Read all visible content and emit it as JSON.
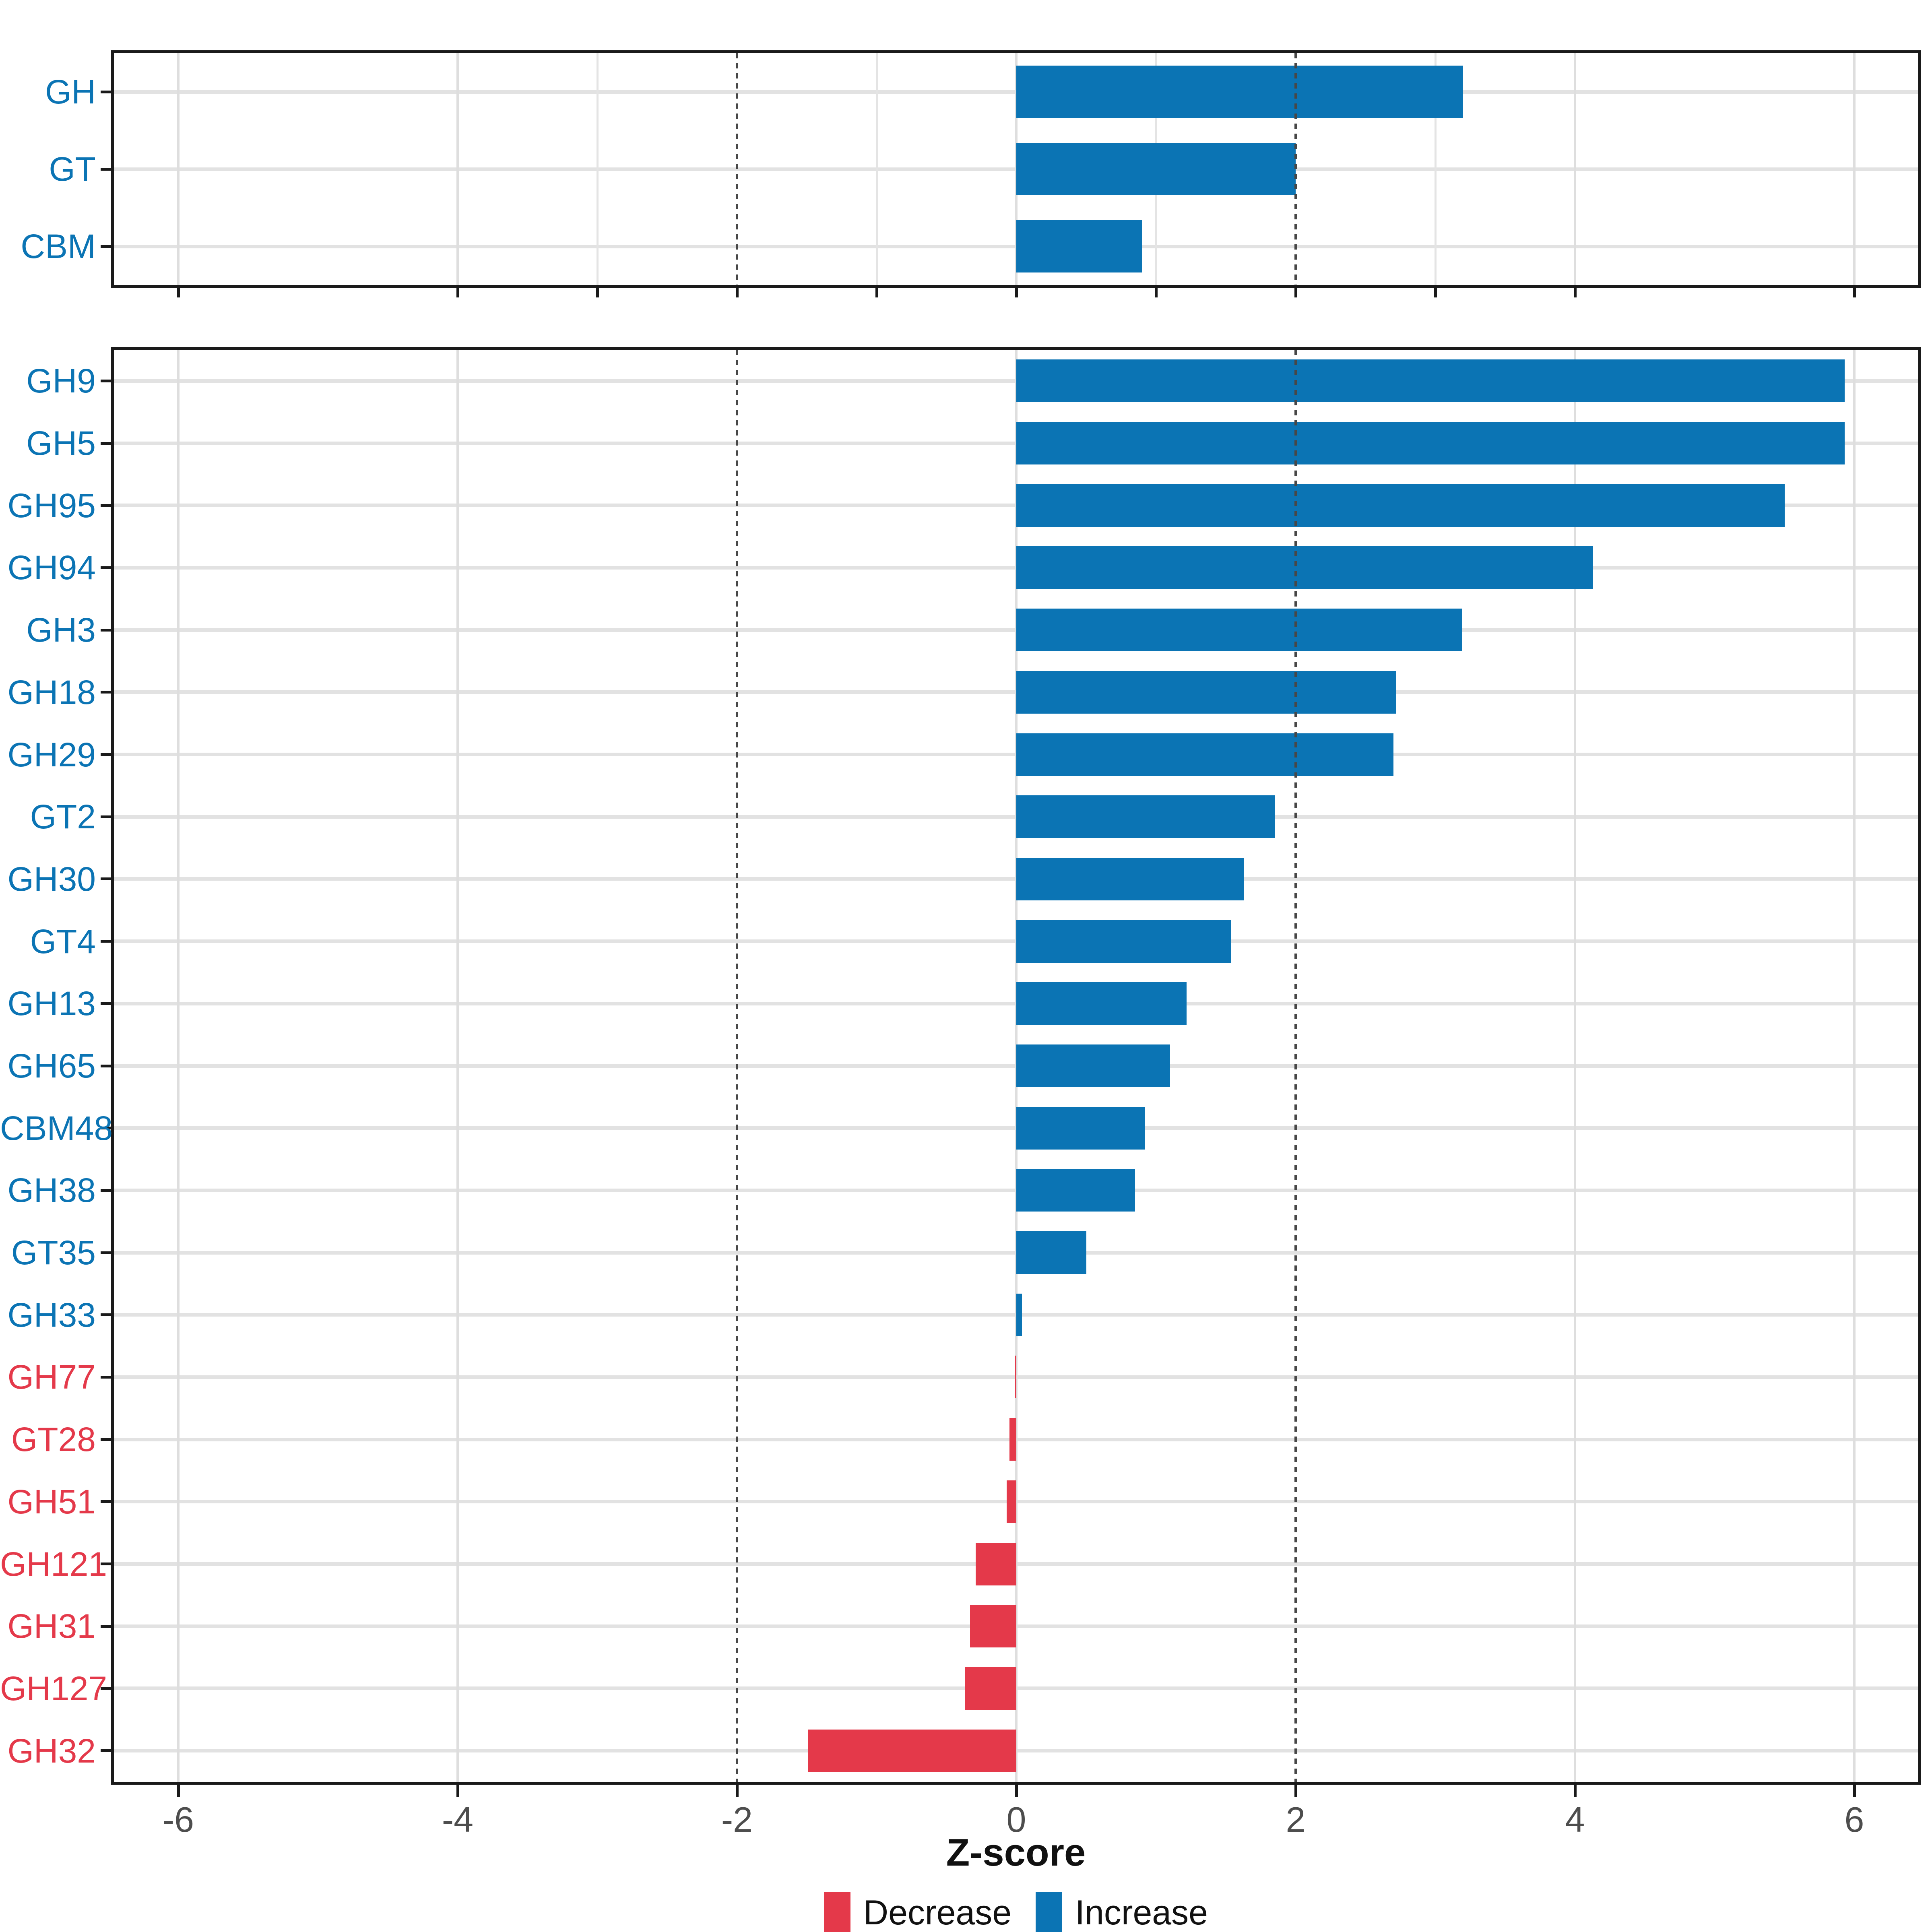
{
  "colors": {
    "increase": "#0B74B4",
    "decrease": "#E4394A",
    "dashed_line": "#474747",
    "grid": "#E2E2E2",
    "axis": "#1A1A1A",
    "tick_label": "#4D4D4D",
    "background": "#FFFFFF"
  },
  "x_axis": {
    "title": "Z-score",
    "tick_labels": [
      "-6",
      "-4",
      "-2",
      "0",
      "2",
      "4",
      "6"
    ],
    "tick_values": [
      -6,
      -4,
      -2,
      0,
      2,
      4,
      6
    ],
    "domain": [
      -6.45,
      6.45
    ]
  },
  "legend": {
    "position": "bottom",
    "items": [
      {
        "label": "Decrease",
        "direction": "decrease"
      },
      {
        "label": "Increase",
        "direction": "increase"
      }
    ]
  },
  "chart_data": [
    {
      "type": "bar",
      "orientation": "horizontal",
      "panel": "top",
      "title": "",
      "categories": [
        "GH",
        "GT",
        "CBM"
      ],
      "values": [
        3.2,
        2.0,
        0.9
      ],
      "directions": [
        "Increase",
        "Increase",
        "Increase"
      ],
      "xlabel": "Z-score",
      "xlim": [
        -6.45,
        6.45
      ],
      "solid_gridlines": [
        -6,
        -4,
        -3,
        -1,
        0,
        1,
        3,
        4,
        6
      ],
      "dashed_gridlines": [
        -2,
        2
      ],
      "axis_tick_positions": [
        -6,
        -4,
        -3,
        -2,
        -1,
        0,
        1,
        2,
        3,
        4,
        6
      ],
      "show_x_labels": false,
      "grid": true
    },
    {
      "type": "bar",
      "orientation": "horizontal",
      "panel": "bottom",
      "title": "",
      "categories": [
        "GH9",
        "GH5",
        "GH95",
        "GH94",
        "GH3",
        "GH18",
        "GH29",
        "GT2",
        "GH30",
        "GT4",
        "GH13",
        "GH65",
        "CBM48",
        "GH38",
        "GT35",
        "GH33",
        "GH77",
        "GT28",
        "GH51",
        "GH121",
        "GH31",
        "GH127",
        "GH32"
      ],
      "values": [
        5.93,
        5.93,
        5.5,
        4.13,
        3.19,
        2.72,
        2.7,
        1.85,
        1.63,
        1.54,
        1.22,
        1.1,
        0.92,
        0.85,
        0.5,
        0.04,
        -0.01,
        -0.05,
        -0.07,
        -0.29,
        -0.33,
        -0.37,
        -1.49
      ],
      "directions": [
        "Increase",
        "Increase",
        "Increase",
        "Increase",
        "Increase",
        "Increase",
        "Increase",
        "Increase",
        "Increase",
        "Increase",
        "Increase",
        "Increase",
        "Increase",
        "Increase",
        "Increase",
        "Increase",
        "Decrease",
        "Decrease",
        "Decrease",
        "Decrease",
        "Decrease",
        "Decrease",
        "Decrease"
      ],
      "xlabel": "Z-score",
      "xlim": [
        -6.45,
        6.45
      ],
      "solid_gridlines": [
        -6,
        -4,
        0,
        4,
        6
      ],
      "dashed_gridlines": [
        -2,
        2
      ],
      "axis_tick_positions": [
        -6,
        -4,
        -2,
        0,
        2,
        4,
        6
      ],
      "x_tick_labels": [
        "-6",
        "-4",
        "-2",
        "0",
        "2",
        "4",
        "6"
      ],
      "show_x_labels": true,
      "grid": true,
      "legend_position": "bottom"
    }
  ]
}
